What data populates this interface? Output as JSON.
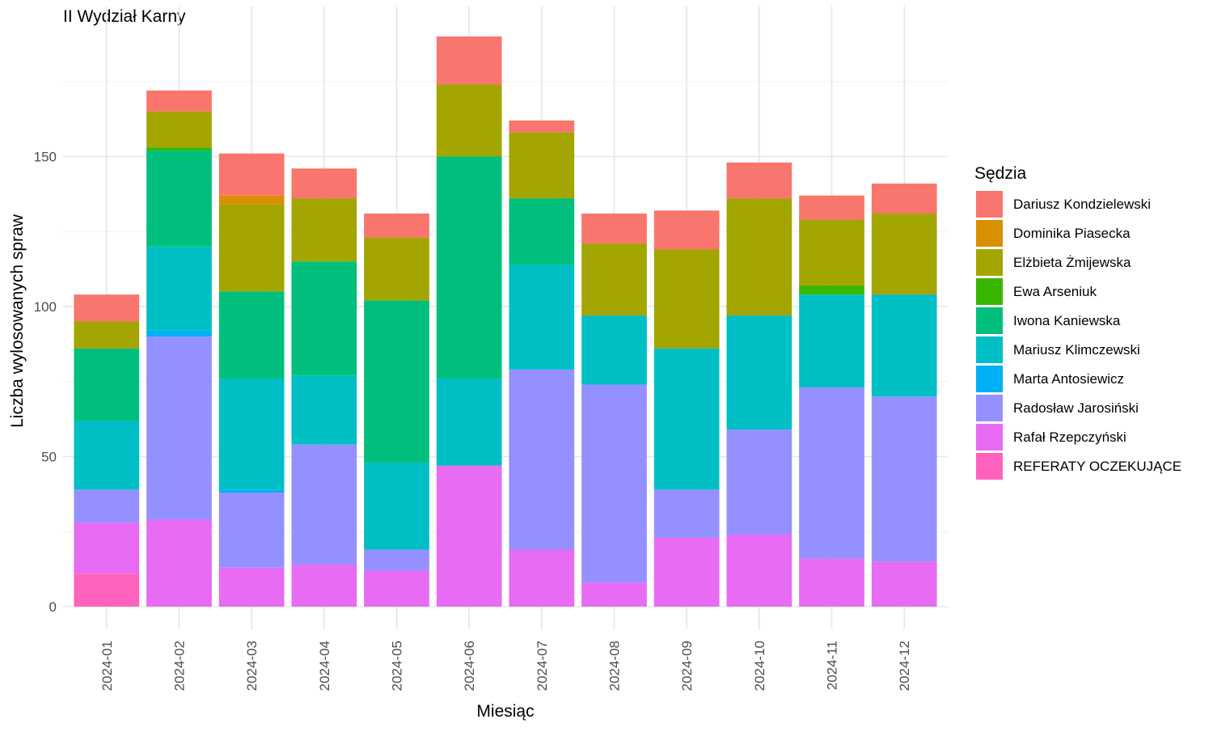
{
  "chart_data": {
    "type": "bar",
    "stacked": true,
    "title": "II Wydział Karny",
    "xlabel": "Miesiąc",
    "ylabel": "Liczba wylosowanych spraw",
    "legend_title": "Sędzia",
    "legend_position": "right",
    "grid": true,
    "ylim": [
      0,
      196
    ],
    "yticks": [
      0,
      50,
      100,
      150
    ],
    "categories": [
      "2024-01",
      "2024-02",
      "2024-03",
      "2024-04",
      "2024-05",
      "2024-06",
      "2024-07",
      "2024-08",
      "2024-09",
      "2024-10",
      "2024-11",
      "2024-12"
    ],
    "series": [
      {
        "name": "Dariusz Kondzielewski",
        "color": "#F8766D",
        "values": [
          9,
          7,
          14,
          10,
          8,
          16,
          4,
          10,
          13,
          12,
          8,
          10
        ]
      },
      {
        "name": "Dominika Piasecka",
        "color": "#D89000",
        "values": [
          0,
          0,
          3,
          0,
          0,
          0,
          0,
          0,
          0,
          0,
          0,
          0
        ]
      },
      {
        "name": "Elżbieta Żmijewska",
        "color": "#A3A500",
        "values": [
          9,
          12,
          29,
          21,
          21,
          24,
          22,
          24,
          33,
          39,
          22,
          27
        ]
      },
      {
        "name": "Ewa Arseniuk",
        "color": "#39B600",
        "values": [
          0,
          1,
          0,
          0,
          0,
          0,
          0,
          0,
          0,
          0,
          3,
          0
        ]
      },
      {
        "name": "Iwona Kaniewska",
        "color": "#00BF7D",
        "values": [
          24,
          32,
          29,
          38,
          54,
          74,
          22,
          0,
          0,
          0,
          0,
          0
        ]
      },
      {
        "name": "Mariusz Klimczewski",
        "color": "#00BFC4",
        "values": [
          23,
          28,
          37,
          23,
          29,
          29,
          35,
          23,
          47,
          38,
          31,
          34
        ]
      },
      {
        "name": "Marta Antosiewicz",
        "color": "#00B0F6",
        "values": [
          0,
          2,
          1,
          0,
          0,
          0,
          0,
          0,
          0,
          0,
          0,
          0
        ]
      },
      {
        "name": "Radosław Jarosiński",
        "color": "#9590FF",
        "values": [
          11,
          61,
          25,
          40,
          7,
          0,
          60,
          66,
          16,
          35,
          57,
          55
        ]
      },
      {
        "name": "Rafał Rzepczyński",
        "color": "#E76BF3",
        "values": [
          17,
          29,
          13,
          14,
          12,
          47,
          19,
          8,
          23,
          24,
          16,
          15
        ]
      },
      {
        "name": "REFERATY OCZEKUJĄCE",
        "color": "#FF62BC",
        "values": [
          11,
          0,
          0,
          0,
          0,
          0,
          0,
          0,
          0,
          0,
          0,
          0
        ]
      }
    ]
  }
}
